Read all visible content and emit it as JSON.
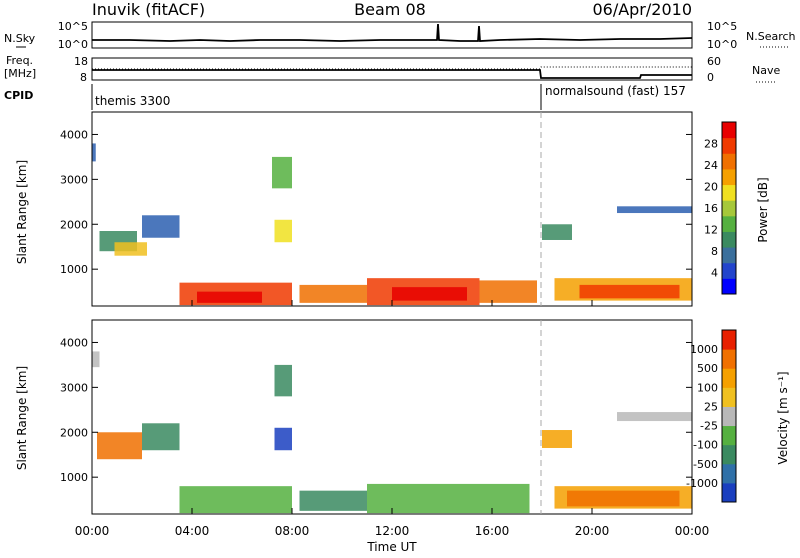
{
  "header": {
    "station": "Inuvik (fitACF)",
    "beam": "Beam 08",
    "date": "06/Apr/2010"
  },
  "noise_panel": {
    "left_label": "N.Sky",
    "right_label": "N.Search",
    "left_ticks": [
      "10^5",
      "10^0"
    ],
    "right_ticks": [
      "10^5",
      "10^0"
    ]
  },
  "freq_panel": {
    "left_label_line1": "Freq.",
    "left_label_line2": "[MHz]",
    "right_label": "Nave",
    "left_ticks": [
      "18",
      "8"
    ],
    "right_ticks": [
      "60",
      "0"
    ]
  },
  "cpid_panel": {
    "label": "CPID",
    "segments": [
      {
        "text": "themis 3300",
        "start_hour": 0
      },
      {
        "text": "normalsound (fast) 157",
        "start_hour": 18
      }
    ]
  },
  "chart_data": [
    {
      "type": "heatmap",
      "title": "Power",
      "ylabel": "Slant Range [km]",
      "yticks": [
        "1000",
        "2000",
        "3000",
        "4000"
      ],
      "ylim": [
        180,
        4500
      ],
      "xlim": [
        0,
        24
      ],
      "colorbar": {
        "label": "Power [dB]",
        "ticks": [
          "4",
          "8",
          "12",
          "16",
          "20",
          "24",
          "28"
        ],
        "colors": [
          "#0000ff",
          "#2244cc",
          "#3a6f9c",
          "#3a8a60",
          "#55b040",
          "#a6c83a",
          "#f0e020",
          "#f5a000",
          "#f07000",
          "#f03a00",
          "#e80000"
        ]
      },
      "regions": [
        {
          "x": [
            0.0,
            0.15
          ],
          "y": [
            3400,
            3800
          ],
          "color": "#2b5fb0"
        },
        {
          "x": [
            0.3,
            1.8
          ],
          "y": [
            1400,
            1850
          ],
          "color": "#3a8a60"
        },
        {
          "x": [
            0.9,
            2.2
          ],
          "y": [
            1300,
            1600
          ],
          "color": "#f0c020"
        },
        {
          "x": [
            2.0,
            3.5
          ],
          "y": [
            1700,
            2200
          ],
          "color": "#2b5fb0"
        },
        {
          "x": [
            3.5,
            8.0
          ],
          "y": [
            200,
            700
          ],
          "color": "#f03a00"
        },
        {
          "x": [
            4.2,
            6.8
          ],
          "y": [
            250,
            500
          ],
          "color": "#e80000"
        },
        {
          "x": [
            7.2,
            8.0
          ],
          "y": [
            2800,
            3500
          ],
          "color": "#55b040"
        },
        {
          "x": [
            7.3,
            8.0
          ],
          "y": [
            1600,
            2100
          ],
          "color": "#f0e020"
        },
        {
          "x": [
            8.3,
            11.0
          ],
          "y": [
            250,
            650
          ],
          "color": "#f07000"
        },
        {
          "x": [
            11.0,
            15.5
          ],
          "y": [
            200,
            800
          ],
          "color": "#f03a00"
        },
        {
          "x": [
            12.0,
            15.0
          ],
          "y": [
            300,
            600
          ],
          "color": "#e80000"
        },
        {
          "x": [
            15.5,
            17.8
          ],
          "y": [
            250,
            750
          ],
          "color": "#f07000"
        },
        {
          "x": [
            18.0,
            19.2
          ],
          "y": [
            1650,
            2000
          ],
          "color": "#3a8a60"
        },
        {
          "x": [
            18.5,
            24.0
          ],
          "y": [
            300,
            800
          ],
          "color": "#f5a000"
        },
        {
          "x": [
            19.5,
            23.5
          ],
          "y": [
            350,
            650
          ],
          "color": "#f03a00"
        },
        {
          "x": [
            21.0,
            24.0
          ],
          "y": [
            2250,
            2400
          ],
          "color": "#2b5fb0"
        }
      ]
    },
    {
      "type": "heatmap",
      "title": "Velocity",
      "ylabel": "Slant Range [km]",
      "yticks": [
        "1000",
        "2000",
        "3000",
        "4000"
      ],
      "ylim": [
        180,
        4500
      ],
      "xlim": [
        0,
        24
      ],
      "xlabel": "Time UT",
      "xticks": [
        "00:00",
        "04:00",
        "08:00",
        "12:00",
        "16:00",
        "20:00",
        "00:00"
      ],
      "colorbar": {
        "label": "Velocity [m s⁻¹]",
        "ticks": [
          "1000",
          "500",
          "100",
          "25",
          "-25",
          "-100",
          "-500",
          "-1000"
        ],
        "colors": [
          "#1a3fbf",
          "#2f70a8",
          "#3a8a60",
          "#55b040",
          "#b8b8b8",
          "#f0c020",
          "#f5a000",
          "#f07000",
          "#e82000"
        ]
      },
      "regions": [
        {
          "x": [
            0.0,
            0.3
          ],
          "y": [
            3450,
            3800
          ],
          "color": "#b8b8b8"
        },
        {
          "x": [
            0.2,
            2.0
          ],
          "y": [
            1400,
            2000
          ],
          "color": "#f07000"
        },
        {
          "x": [
            2.0,
            3.5
          ],
          "y": [
            1600,
            2200
          ],
          "color": "#3a8a60"
        },
        {
          "x": [
            3.5,
            8.0
          ],
          "y": [
            200,
            800
          ],
          "color": "#55b040"
        },
        {
          "x": [
            7.3,
            8.0
          ],
          "y": [
            2800,
            3500
          ],
          "color": "#3a8a60"
        },
        {
          "x": [
            7.3,
            8.0
          ],
          "y": [
            1600,
            2100
          ],
          "color": "#1a3fbf"
        },
        {
          "x": [
            8.3,
            11.0
          ],
          "y": [
            250,
            700
          ],
          "color": "#3a8a60"
        },
        {
          "x": [
            11.0,
            17.5
          ],
          "y": [
            200,
            850
          ],
          "color": "#55b040"
        },
        {
          "x": [
            18.0,
            19.2
          ],
          "y": [
            1650,
            2050
          ],
          "color": "#f5a000"
        },
        {
          "x": [
            18.5,
            24.0
          ],
          "y": [
            300,
            800
          ],
          "color": "#f5a000"
        },
        {
          "x": [
            19.0,
            23.5
          ],
          "y": [
            350,
            700
          ],
          "color": "#f07000"
        },
        {
          "x": [
            21.0,
            24.0
          ],
          "y": [
            2250,
            2450
          ],
          "color": "#b8b8b8"
        }
      ]
    }
  ]
}
